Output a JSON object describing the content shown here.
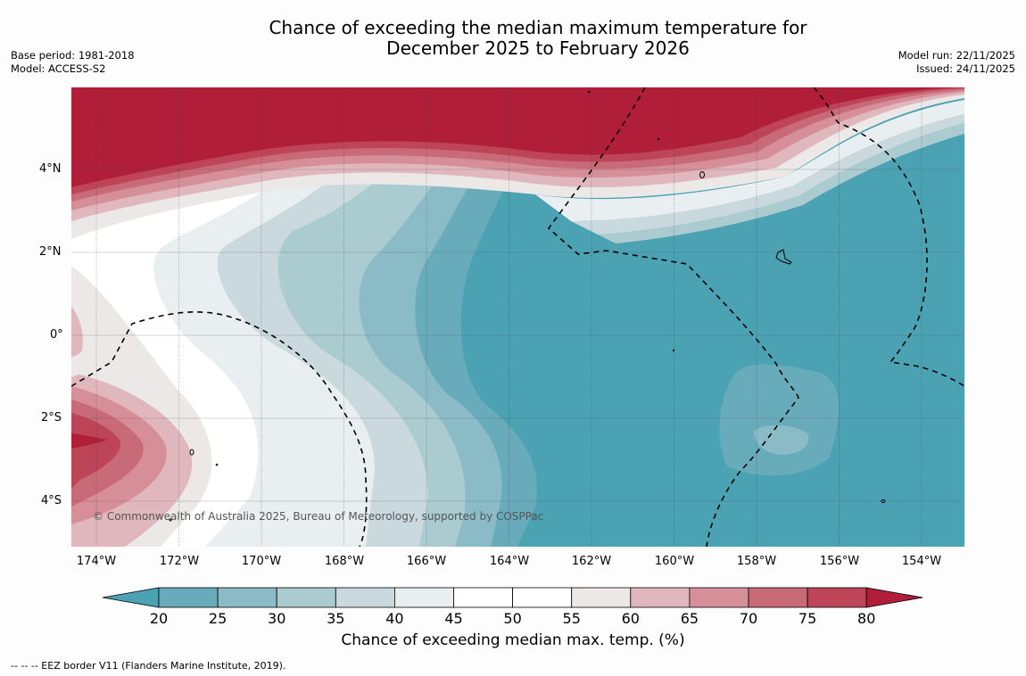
{
  "title": {
    "line1": "Chance of exceeding the median maximum temperature for",
    "line2": "December 2025 to February 2026"
  },
  "meta_left": {
    "base_period": "Base period: 1981-2018",
    "model": "Model: ACCESS-S2"
  },
  "meta_right": {
    "model_run": "Model run: 22/11/2025",
    "issued": "Issued: 24/11/2025"
  },
  "copyright": "© Commonwealth of Australia 2025, Bureau of Meteorology, supported by COSPPac",
  "map": {
    "lat_labels": [
      "4°N",
      "2°N",
      "0°",
      "2°S",
      "4°S"
    ],
    "lon_labels": [
      "174°W",
      "172°W",
      "170°W",
      "168°W",
      "166°W",
      "164°W",
      "162°W",
      "160°W",
      "158°W",
      "156°W",
      "154°W"
    ]
  },
  "colorbar": {
    "label": "Chance of exceeding median max. temp. (%)",
    "ticks": [
      "20",
      "25",
      "30",
      "35",
      "40",
      "45",
      "50",
      "55",
      "60",
      "65",
      "70",
      "75",
      "80"
    ],
    "colors": {
      "below_20": "#4aa2b3",
      "20_25": "#68acbb",
      "25_30": "#8bbbc6",
      "30_35": "#aacbd0",
      "35_40": "#cad9dd",
      "40_45": "#e9eef1",
      "45_50": "#ffffff",
      "50_55": "#ffffff",
      "55_60": "#ece8e8",
      "60_65": "#e0b7bd",
      "65_70": "#d68e98",
      "70_75": "#c86a77",
      "75_80": "#be4457",
      "above_80": "#b01e3a"
    }
  },
  "footnote": "--  --  -- EEZ border V11 (Flanders Marine Institute, 2019)."
}
